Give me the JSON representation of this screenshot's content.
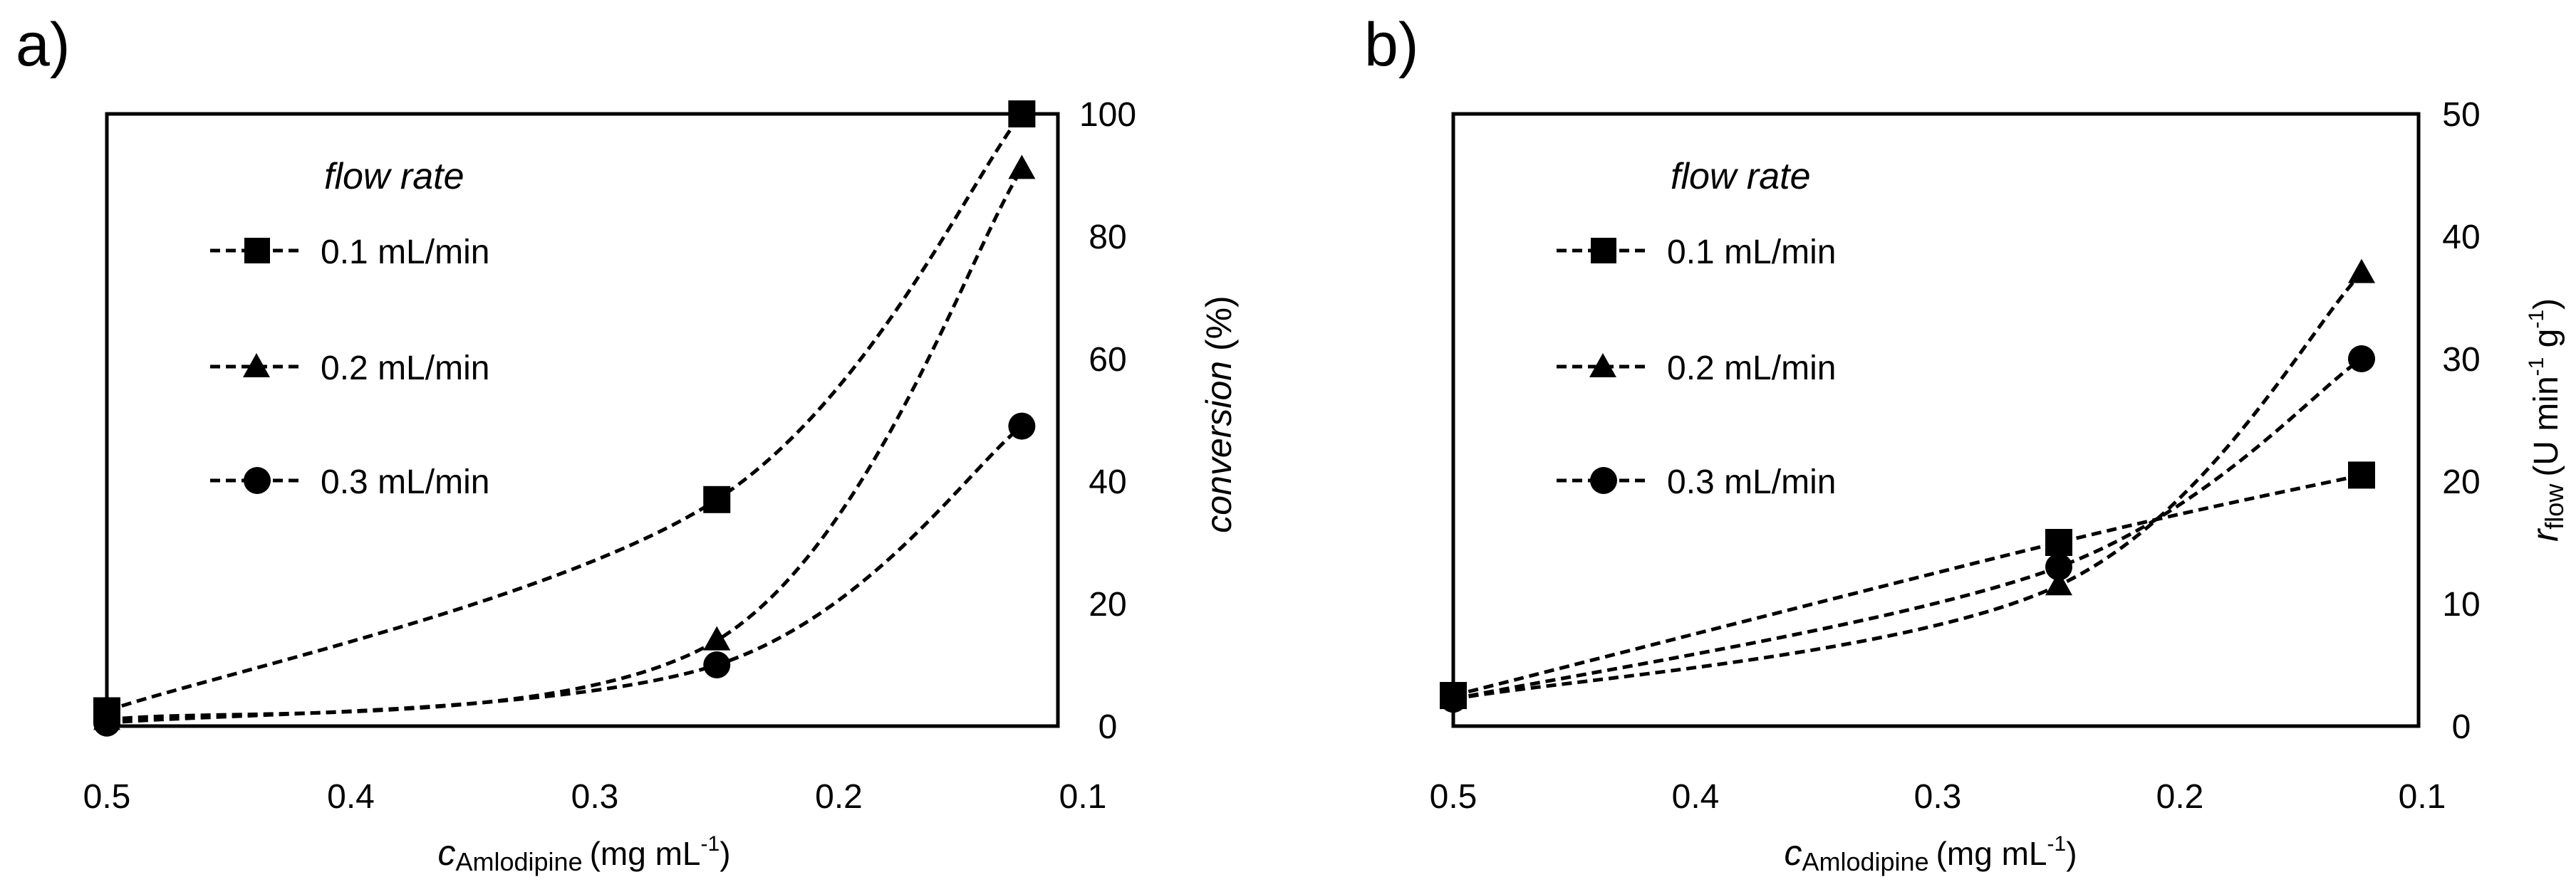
{
  "chart_data": [
    {
      "panel_label": "a)",
      "type": "line",
      "legend": {
        "title": "flow rate",
        "placement": "top-left",
        "entries": [
          "0.1 mL/min",
          "0.2 mL/min",
          "0.3 mL/min"
        ]
      },
      "xlabel": {
        "main": "c",
        "sub": "Amlodipine",
        "unit": "(mg mL",
        "sup": "-1",
        "close": ")"
      },
      "ylabel": {
        "italic": "conversion",
        "rest": " (%)"
      },
      "xlim": [
        0.5,
        0.1
      ],
      "ylim": [
        0,
        100
      ],
      "x_ticks": [
        "0.5",
        "0.4",
        "0.3",
        "0.2",
        "0.1"
      ],
      "x_tick_values": [
        0.5,
        0.4,
        0.3,
        0.2,
        0.1
      ],
      "y_ticks": [
        "0",
        "20",
        "40",
        "60",
        "80",
        "100"
      ],
      "y_tick_values": [
        0,
        20,
        40,
        60,
        80,
        100
      ],
      "x": [
        0.5,
        0.25,
        0.125
      ],
      "series": [
        {
          "name": "0.1 mL/min",
          "marker": "square",
          "values": [
            2.5,
            37,
            100
          ]
        },
        {
          "name": "0.2 mL/min",
          "marker": "triangle",
          "values": [
            1,
            14,
            91
          ]
        },
        {
          "name": "0.3 mL/min",
          "marker": "circle",
          "values": [
            0.5,
            10,
            49
          ]
        }
      ]
    },
    {
      "panel_label": "b)",
      "type": "line",
      "legend": {
        "title": "flow rate",
        "placement": "top-left",
        "entries": [
          "0.1 mL/min",
          "0.2 mL/min",
          "0.3 mL/min"
        ]
      },
      "xlabel": {
        "main": "c",
        "sub": "Amlodipine",
        "unit": "(mg mL",
        "sup": "-1",
        "close": ")"
      },
      "ylabel": {
        "main": "r",
        "sub": "flow",
        "unit": "(U min",
        "sup1": "-1",
        "mid": " g",
        "sup2": "-1",
        "close": ")"
      },
      "xlim": [
        0.5,
        0.1
      ],
      "ylim": [
        0,
        50
      ],
      "x_ticks": [
        "0.5",
        "0.4",
        "0.3",
        "0.2",
        "0.1"
      ],
      "x_tick_values": [
        0.5,
        0.4,
        0.3,
        0.2,
        0.1
      ],
      "y_ticks": [
        "0",
        "10",
        "20",
        "30",
        "40",
        "50"
      ],
      "y_tick_values": [
        0,
        10,
        20,
        30,
        40,
        50
      ],
      "x": [
        0.5,
        0.25,
        0.125
      ],
      "series": [
        {
          "name": "0.1 mL/min",
          "marker": "square",
          "values": [
            2.5,
            15,
            20.5
          ]
        },
        {
          "name": "0.2 mL/min",
          "marker": "triangle",
          "values": [
            2.2,
            11.5,
            37
          ]
        },
        {
          "name": "0.3 mL/min",
          "marker": "circle",
          "values": [
            2.2,
            13,
            30
          ]
        }
      ]
    }
  ]
}
